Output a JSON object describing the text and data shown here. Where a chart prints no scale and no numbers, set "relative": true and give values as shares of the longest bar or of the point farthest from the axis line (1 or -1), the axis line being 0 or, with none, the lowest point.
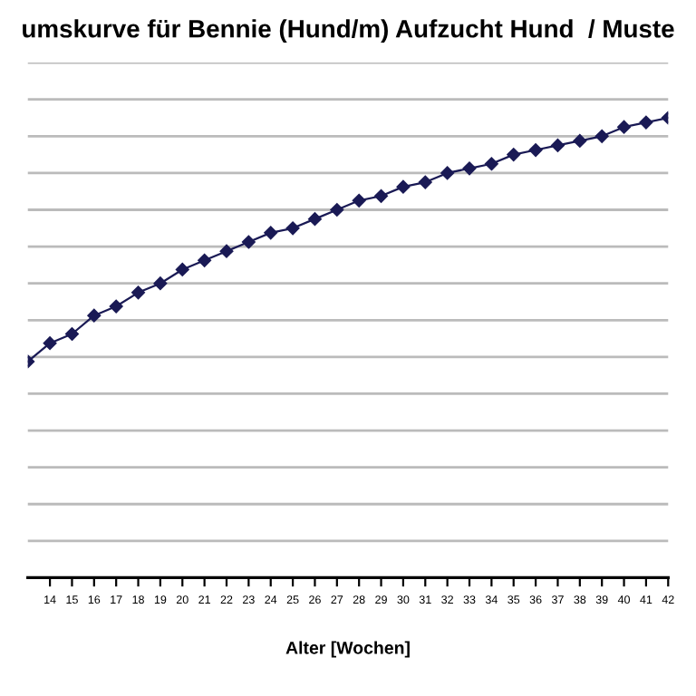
{
  "chart_data": {
    "type": "line",
    "title": "umskurve für Bennie (Hund/m) Aufzucht Hund  / Muste",
    "xlabel": "Alter [Wochen]",
    "x": [
      13,
      14,
      15,
      16,
      17,
      18,
      19,
      20,
      21,
      22,
      23,
      24,
      25,
      26,
      27,
      28,
      29,
      30,
      31,
      32,
      33,
      34,
      35,
      36,
      37,
      38,
      39,
      40,
      41,
      42
    ],
    "series": [
      {
        "color": "#1a1a55",
        "values": [
          0.47,
          0.51,
          0.53,
          0.57,
          0.59,
          0.62,
          0.64,
          0.67,
          0.69,
          0.71,
          0.73,
          0.75,
          0.76,
          0.78,
          0.8,
          0.82,
          0.83,
          0.85,
          0.86,
          0.88,
          0.89,
          0.9,
          0.92,
          0.93,
          0.94,
          0.95,
          0.96,
          0.98,
          0.99,
          1.0
        ]
      }
    ],
    "relative": true,
    "xlim": [
      13,
      42
    ],
    "xticks": [
      14,
      15,
      16,
      17,
      18,
      19,
      20,
      21,
      22,
      23,
      24,
      25,
      26,
      27,
      28,
      29,
      30,
      31,
      32,
      33,
      34,
      35,
      36,
      37,
      38,
      39,
      40,
      41,
      42
    ],
    "tick_labels": "x",
    "grid": "y",
    "marker": "diamond",
    "line_style": "solid",
    "legend": false
  }
}
